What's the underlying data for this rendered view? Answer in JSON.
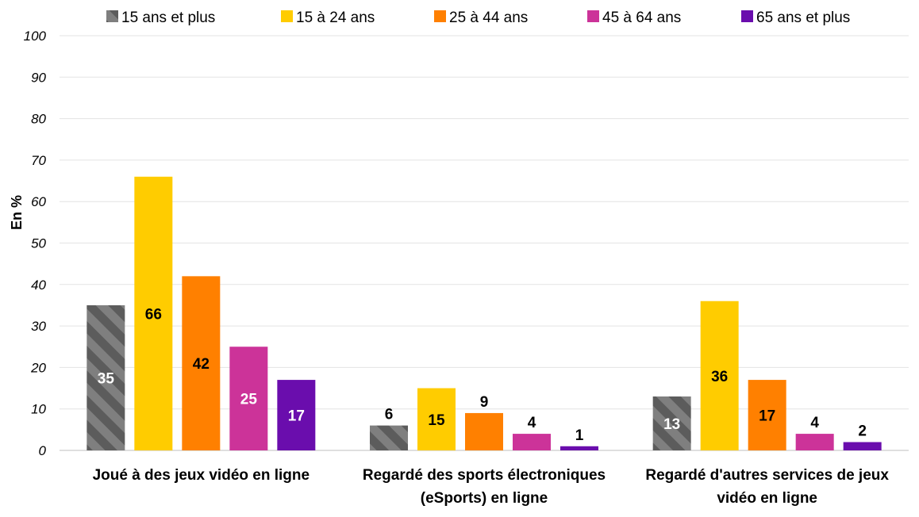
{
  "chart_data": {
    "type": "bar",
    "title": "",
    "xlabel": "",
    "ylabel": "En %",
    "ylim": [
      0,
      100
    ],
    "yticks": [
      "0",
      "10",
      "20",
      "30",
      "40",
      "50",
      "60",
      "70",
      "80",
      "90",
      "100"
    ],
    "grid": true,
    "legend_position": "top",
    "categories": [
      [
        "Joué à des jeux vidéo en ligne"
      ],
      [
        "Regardé des sports électroniques",
        "(eSports) en ligne"
      ],
      [
        "Regardé d'autres services de jeux",
        "vidéo en ligne"
      ]
    ],
    "series": [
      {
        "name": "15 ans et plus",
        "color": "#7f7f7f",
        "pattern": "hatched",
        "values": [
          35,
          6,
          13
        ],
        "labels": [
          "35",
          "6",
          "13"
        ],
        "label_color": "#ffffff",
        "label_inside": [
          true,
          false,
          true
        ]
      },
      {
        "name": "15 à 24 ans",
        "color": "#ffcc00",
        "values": [
          66,
          15,
          36
        ],
        "labels": [
          "66",
          "15",
          "36"
        ],
        "label_color": "#000000",
        "label_inside": [
          true,
          true,
          true
        ]
      },
      {
        "name": "25 à 44 ans",
        "color": "#ff8000",
        "values": [
          42,
          9,
          17
        ],
        "labels": [
          "42",
          "9",
          "17"
        ],
        "label_color": "#000000",
        "label_inside": [
          true,
          false,
          true
        ]
      },
      {
        "name": "45 à 64 ans",
        "color": "#cc3399",
        "values": [
          25,
          4,
          4
        ],
        "labels": [
          "25",
          "4",
          "4"
        ],
        "label_color": "#ffffff",
        "label_inside": [
          true,
          false,
          false
        ]
      },
      {
        "name": "65 ans et plus",
        "color": "#6a0dad",
        "values": [
          17,
          1,
          2
        ],
        "labels": [
          "17",
          "1",
          "2"
        ],
        "label_color": "#ffffff",
        "label_inside": [
          true,
          false,
          false
        ]
      }
    ]
  }
}
